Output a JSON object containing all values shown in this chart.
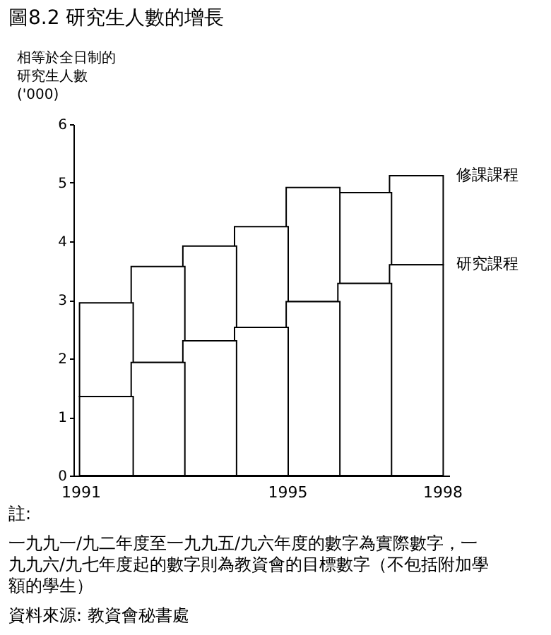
{
  "chart_data": {
    "type": "bar",
    "stacked": true,
    "title": "圖8.2 研究生人數的增長",
    "ylabel": "相等於全日制的研究生人數 ('000)",
    "x": [
      1991.5,
      1992.5,
      1993.5,
      1994.5,
      1995.5,
      1996.5,
      1997.5
    ],
    "series": [
      {
        "name": "研究課程",
        "color": "#ffffff",
        "values": [
          1.35,
          1.93,
          2.3,
          2.53,
          2.97,
          3.28,
          3.6
        ]
      },
      {
        "name": "修課課程",
        "color": "#ffffff",
        "values": [
          1.6,
          1.64,
          1.62,
          1.72,
          1.95,
          1.55,
          1.52
        ]
      }
    ],
    "xlim": [
      1991,
      1998
    ],
    "xticks": [
      1991,
      1995,
      1998
    ],
    "ylim": [
      0,
      6
    ],
    "yticks": [
      0,
      1,
      2,
      3,
      4,
      5,
      6
    ],
    "grid": false,
    "legend": false,
    "annotations": [
      "註:",
      "一九九一/九二年度至一九九五/九六年度的數字為實際數字，一九九六/九七年度起的數字則為教資會的目標數字（不包括附加學額的學生）",
      "資料來源: 教資會秘書處"
    ]
  }
}
